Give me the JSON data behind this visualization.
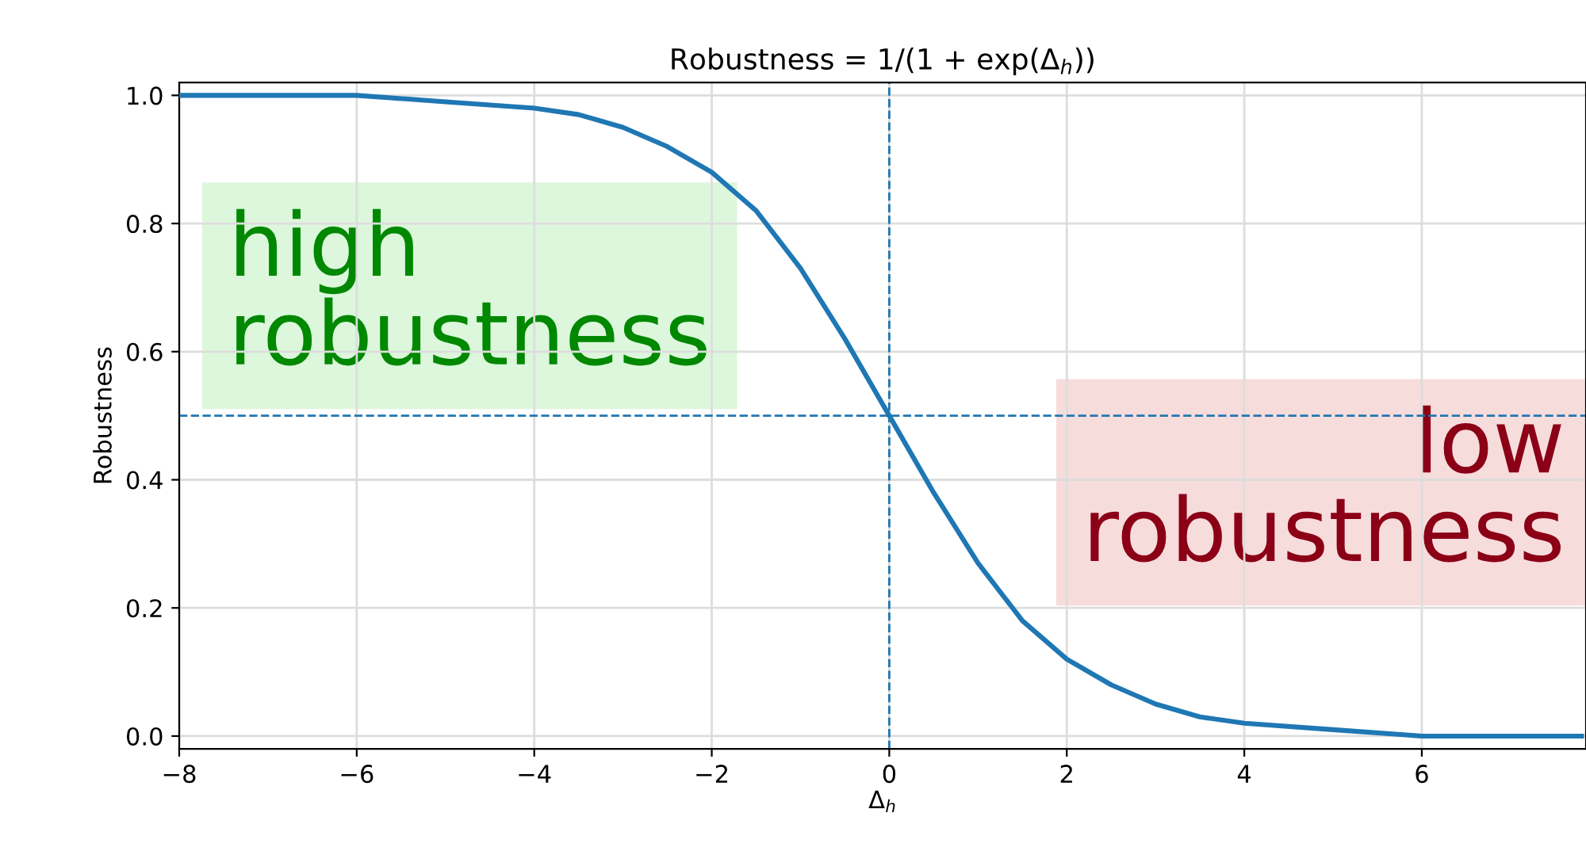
{
  "chart_data": {
    "type": "line",
    "title": "Robustness = 1/(1 + exp(Δ$_{h}$))",
    "xlabel": "Δ$_{h}$",
    "ylabel": "Robustness",
    "x": [
      -8,
      -7,
      -6,
      -5,
      -4,
      -3.5,
      -3,
      -2.5,
      -2,
      -1.5,
      -1,
      -0.5,
      0,
      0.5,
      1,
      1.5,
      2,
      2.5,
      3,
      3.5,
      4,
      5,
      6,
      7,
      7.8
    ],
    "series": [
      {
        "color": "#1f77b4",
        "values": [
          1.0,
          1.0,
          1.0,
          0.99,
          0.98,
          0.97,
          0.95,
          0.92,
          0.88,
          0.82,
          0.73,
          0.62,
          0.5,
          0.38,
          0.27,
          0.18,
          0.12,
          0.08,
          0.05,
          0.03,
          0.02,
          0.01,
          0.0,
          0.0,
          0.0
        ]
      }
    ],
    "xlim": [
      -8,
      7.85
    ],
    "ylim": [
      -0.02,
      1.02
    ],
    "xticks": [
      {
        "value": -8,
        "label": "−8"
      },
      {
        "value": -6,
        "label": "−6"
      },
      {
        "value": -4,
        "label": "−4"
      },
      {
        "value": -2,
        "label": "−2"
      },
      0,
      2,
      4,
      6
    ],
    "yticks": [
      {
        "value": 0,
        "label": "0.0"
      },
      {
        "value": 0.2,
        "label": "0.2"
      },
      {
        "value": 0.4,
        "label": "0.4"
      },
      {
        "value": 0.6,
        "label": "0.6"
      },
      {
        "value": 0.8,
        "label": "0.8"
      },
      {
        "value": 1,
        "label": "1.0"
      }
    ],
    "ref_lines": [
      {
        "axis": "x",
        "value": 0,
        "color": "#1f77b4",
        "line_style": "dashed"
      },
      {
        "axis": "y",
        "value": 0.5,
        "color": "#1f77b4",
        "line_style": "dashed"
      }
    ],
    "annotations": [
      "high\nrobustness",
      "low\nrobustness"
    ],
    "grid": true,
    "line_style": "solid",
    "marker": "none"
  }
}
